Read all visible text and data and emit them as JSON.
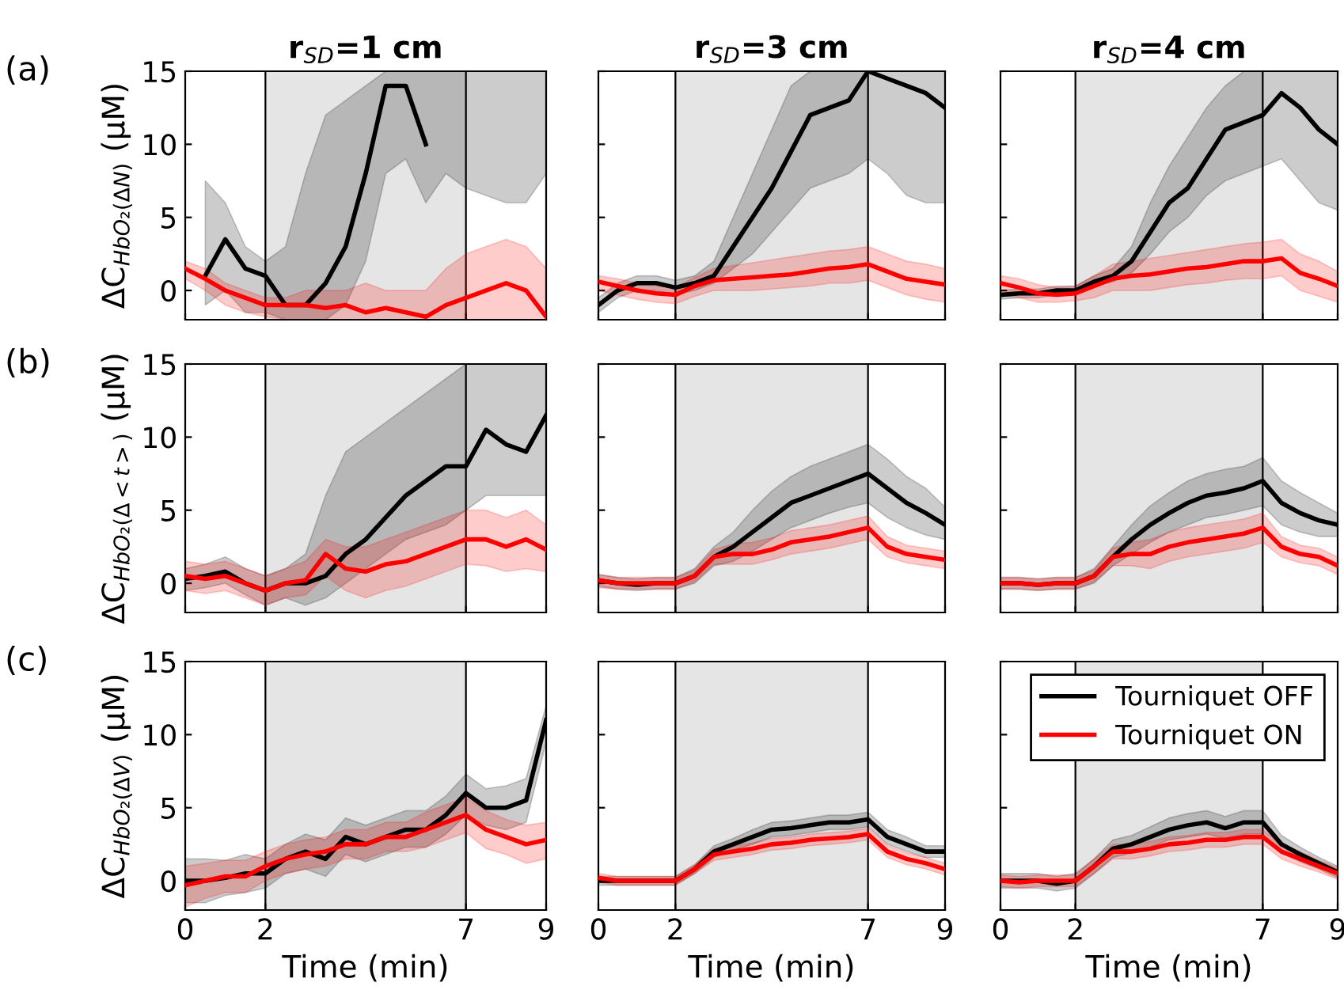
{
  "chart_data": [
    {
      "type": "line",
      "title": "r$_{SD}$=1 cm",
      "ylabel": "ΔC$_{HbO₂(ΔN)}$ (μM)",
      "annotations": [
        "(a)"
      ],
      "x": [
        0,
        0.5,
        1,
        1.5,
        2,
        2.5,
        3,
        3.5,
        4,
        4.5,
        5,
        5.5,
        6,
        6.5,
        7,
        7.5,
        8,
        8.5,
        9
      ],
      "xlim": [
        0,
        9
      ],
      "ylim": [
        -2,
        15
      ],
      "xticks": [
        0,
        2,
        7,
        9
      ],
      "yticks": [
        0,
        5,
        10,
        15
      ],
      "tick_labels": "y",
      "grid": false,
      "legend": false,
      "bands": [
        {
          "axis": "x",
          "from": 2,
          "to": 7,
          "color": "#e5e5e5"
        }
      ],
      "ref_lines": [
        {
          "axis": "x",
          "value": 2,
          "color": "#000000"
        },
        {
          "axis": "x",
          "value": 7,
          "color": "#000000"
        }
      ],
      "series": [
        {
          "color": "#000000",
          "values": [
            null,
            1,
            3.5,
            1.5,
            1,
            -1,
            -1,
            0.5,
            3,
            8,
            14,
            14,
            10,
            null,
            null,
            null,
            null,
            null,
            null
          ],
          "lower": [
            null,
            -1,
            0,
            -1.5,
            -1.5,
            -2,
            -2,
            -2,
            -1,
            2,
            8,
            9,
            6,
            8,
            7,
            6.5,
            6,
            6,
            8
          ],
          "upper": [
            null,
            7.5,
            6,
            3,
            2,
            3,
            8,
            12,
            13,
            14,
            15,
            15,
            15,
            15,
            15,
            15,
            15,
            15,
            15
          ]
        },
        {
          "color": "#ff0000",
          "values": [
            1.5,
            0.8,
            0,
            -0.5,
            -1,
            -1,
            -1,
            -1.2,
            -1,
            -1.5,
            -1.2,
            -1.5,
            -1.8,
            -1,
            -0.5,
            0,
            0.5,
            0,
            -1.8
          ],
          "lower": [
            0.8,
            0,
            -1,
            -1.5,
            -1.8,
            -2,
            -2,
            -2,
            -2,
            -2,
            -2,
            -2,
            -2,
            -2,
            -2,
            -2,
            -2,
            -2,
            -2
          ],
          "upper": [
            2,
            1.5,
            0.5,
            0,
            -0.5,
            -0.5,
            0,
            0,
            0,
            0.5,
            0,
            0,
            0,
            1.5,
            2.5,
            3,
            3.5,
            3,
            1.5
          ]
        }
      ]
    },
    {
      "type": "line",
      "title": "r$_{SD}$=3 cm",
      "x": [
        0,
        0.5,
        1,
        1.5,
        2,
        2.5,
        3,
        3.5,
        4,
        4.5,
        5,
        5.5,
        6,
        6.5,
        7,
        7.5,
        8,
        8.5,
        9
      ],
      "xlim": [
        0,
        9
      ],
      "ylim": [
        -2,
        15
      ],
      "xticks": [
        0,
        2,
        7,
        9
      ],
      "yticks": [
        0,
        5,
        10,
        15
      ],
      "tick_labels": false,
      "grid": false,
      "legend": false,
      "bands": [
        {
          "axis": "x",
          "from": 2,
          "to": 7,
          "color": "#e5e5e5"
        }
      ],
      "ref_lines": [
        {
          "axis": "x",
          "value": 2,
          "color": "#000000"
        },
        {
          "axis": "x",
          "value": 7,
          "color": "#000000"
        }
      ],
      "series": [
        {
          "color": "#000000",
          "values": [
            -1,
            0,
            0.5,
            0.5,
            0.2,
            0.5,
            1,
            3,
            5,
            7,
            9.5,
            12,
            12.5,
            13,
            15,
            14.5,
            14,
            13.5,
            12.5
          ],
          "lower": [
            -1.5,
            -0.5,
            0,
            0,
            -0.3,
            0,
            0.5,
            1.5,
            2.5,
            4,
            5.5,
            7,
            7.5,
            8,
            9,
            8,
            6.5,
            6,
            6
          ],
          "upper": [
            -0.5,
            0.5,
            1,
            1,
            0.7,
            1,
            2,
            5,
            8,
            11,
            14,
            15,
            15,
            15,
            15,
            15,
            15,
            15,
            15
          ]
        },
        {
          "color": "#ff0000",
          "values": [
            0.6,
            0.3,
            0,
            -0.2,
            -0.3,
            0.3,
            0.7,
            0.8,
            0.9,
            1,
            1.1,
            1.3,
            1.5,
            1.6,
            1.8,
            1.3,
            0.8,
            0.6,
            0.4
          ],
          "lower": [
            0,
            -0.3,
            -0.6,
            -0.8,
            -0.9,
            -0.4,
            0,
            0,
            0,
            0.1,
            0.2,
            0.3,
            0.5,
            0.5,
            0.7,
            0.2,
            -0.3,
            -0.6,
            -0.8
          ],
          "upper": [
            1,
            0.8,
            0.5,
            0.3,
            0.2,
            0.9,
            1.5,
            1.7,
            1.9,
            2.1,
            2.3,
            2.5,
            2.7,
            2.8,
            3,
            2.5,
            2,
            1.8,
            1.5
          ]
        }
      ]
    },
    {
      "type": "line",
      "title": "r$_{SD}$=4 cm",
      "x": [
        0,
        0.5,
        1,
        1.5,
        2,
        2.5,
        3,
        3.5,
        4,
        4.5,
        5,
        5.5,
        6,
        6.5,
        7,
        7.5,
        8,
        8.5,
        9
      ],
      "xlim": [
        0,
        9
      ],
      "ylim": [
        -2,
        15
      ],
      "xticks": [
        0,
        2,
        7,
        9
      ],
      "yticks": [
        0,
        5,
        10,
        15
      ],
      "tick_labels": false,
      "grid": false,
      "legend": false,
      "bands": [
        {
          "axis": "x",
          "from": 2,
          "to": 7,
          "color": "#e5e5e5"
        }
      ],
      "ref_lines": [
        {
          "axis": "x",
          "value": 2,
          "color": "#000000"
        },
        {
          "axis": "x",
          "value": 7,
          "color": "#000000"
        }
      ],
      "series": [
        {
          "color": "#000000",
          "values": [
            -0.3,
            -0.2,
            -0.2,
            0,
            0,
            0.6,
            1,
            2,
            4,
            6,
            7,
            9,
            11,
            11.5,
            12,
            13.5,
            12.5,
            11,
            10
          ],
          "lower": [
            -0.6,
            -0.5,
            -0.5,
            -0.3,
            -0.3,
            0.3,
            0.6,
            1.2,
            2.5,
            4,
            5,
            6.5,
            7.5,
            8,
            8.5,
            9,
            7.5,
            6,
            5.5
          ],
          "upper": [
            0,
            0.1,
            0.1,
            0.3,
            0.3,
            1,
            1.5,
            3,
            6,
            8.5,
            10.5,
            12.5,
            14,
            15,
            15,
            15,
            15,
            15,
            15
          ]
        },
        {
          "color": "#ff0000",
          "values": [
            0.5,
            0.2,
            -0.2,
            -0.3,
            -0.2,
            0.3,
            0.8,
            1,
            1.1,
            1.3,
            1.5,
            1.6,
            1.8,
            2,
            2,
            2.2,
            1.2,
            0.8,
            0.3
          ],
          "lower": [
            -0.3,
            -0.5,
            -0.8,
            -0.8,
            -0.7,
            -0.5,
            0,
            0,
            0,
            0.2,
            0.4,
            0.5,
            0.7,
            0.8,
            0.8,
            1,
            0,
            -0.4,
            -0.8
          ],
          "upper": [
            1,
            0.8,
            0.4,
            0.2,
            0.3,
            1,
            1.8,
            2,
            2.2,
            2.4,
            2.6,
            2.8,
            3,
            3.2,
            3.3,
            3.5,
            2.5,
            2,
            1.3
          ]
        }
      ]
    },
    {
      "type": "line",
      "ylabel": "ΔC$_{HbO₂(Δ<t>)}$ (μM)",
      "annotations": [
        "(b)"
      ],
      "x": [
        0,
        0.5,
        1,
        1.5,
        2,
        2.5,
        3,
        3.5,
        4,
        4.5,
        5,
        5.5,
        6,
        6.5,
        7,
        7.5,
        8,
        8.5,
        9
      ],
      "xlim": [
        0,
        9
      ],
      "ylim": [
        -2,
        15
      ],
      "xticks": [
        0,
        2,
        7,
        9
      ],
      "yticks": [
        0,
        5,
        10,
        15
      ],
      "tick_labels": "y",
      "grid": false,
      "legend": false,
      "bands": [
        {
          "axis": "x",
          "from": 2,
          "to": 7,
          "color": "#e5e5e5"
        }
      ],
      "ref_lines": [
        {
          "axis": "x",
          "value": 2,
          "color": "#000000"
        },
        {
          "axis": "x",
          "value": 7,
          "color": "#000000"
        }
      ],
      "series": [
        {
          "color": "#000000",
          "values": [
            0.3,
            0.5,
            0.8,
            0,
            -0.5,
            0,
            0,
            0.5,
            2,
            3,
            4.5,
            6,
            7,
            8,
            8,
            10.5,
            9.5,
            9,
            11.5
          ],
          "lower": [
            -0.5,
            -0.3,
            0,
            -0.8,
            -1.5,
            -1,
            -1.5,
            -1,
            0,
            1,
            2,
            3,
            3.5,
            4,
            5,
            6,
            6,
            6,
            6
          ],
          "upper": [
            1,
            1.3,
            1.8,
            1,
            0.5,
            1,
            2,
            6,
            9,
            10,
            11,
            12,
            13,
            14,
            15,
            15,
            15,
            15,
            15
          ]
        },
        {
          "color": "#ff0000",
          "values": [
            0.5,
            0.3,
            0.5,
            0,
            -0.5,
            0,
            0.2,
            2,
            1,
            0.8,
            1.3,
            1.5,
            2,
            2.5,
            3,
            3,
            2.5,
            3,
            2.3
          ],
          "lower": [
            -0.5,
            -0.7,
            -0.5,
            -1,
            -1.5,
            -1,
            -0.8,
            0.5,
            -0.5,
            -1,
            -0.5,
            -0.2,
            0.3,
            0.8,
            1.3,
            1.2,
            0.8,
            1,
            0.8
          ],
          "upper": [
            1.5,
            1.3,
            1.5,
            1,
            0.5,
            1,
            1.5,
            3,
            2.5,
            2.5,
            3,
            3.5,
            4,
            4.5,
            5,
            5,
            4.5,
            5,
            4
          ]
        }
      ]
    },
    {
      "type": "line",
      "x": [
        0,
        0.5,
        1,
        1.5,
        2,
        2.5,
        3,
        3.5,
        4,
        4.5,
        5,
        5.5,
        6,
        6.5,
        7,
        7.5,
        8,
        8.5,
        9
      ],
      "xlim": [
        0,
        9
      ],
      "ylim": [
        -2,
        15
      ],
      "xticks": [
        0,
        2,
        7,
        9
      ],
      "yticks": [
        0,
        5,
        10,
        15
      ],
      "tick_labels": false,
      "grid": false,
      "legend": false,
      "bands": [
        {
          "axis": "x",
          "from": 2,
          "to": 7,
          "color": "#e5e5e5"
        }
      ],
      "ref_lines": [
        {
          "axis": "x",
          "value": 2,
          "color": "#000000"
        },
        {
          "axis": "x",
          "value": 7,
          "color": "#000000"
        }
      ],
      "series": [
        {
          "color": "#000000",
          "values": [
            0.2,
            0,
            -0.1,
            0,
            0,
            0.5,
            1.8,
            2.5,
            3.5,
            4.5,
            5.5,
            6,
            6.5,
            7,
            7.5,
            6.5,
            5.5,
            4.8,
            4
          ],
          "lower": [
            -0.2,
            -0.4,
            -0.5,
            -0.4,
            -0.4,
            0,
            1.2,
            1.5,
            2.2,
            3,
            3.8,
            4.3,
            4.8,
            5.2,
            5.5,
            4.5,
            3.8,
            3.3,
            3
          ],
          "upper": [
            0.6,
            0.4,
            0.3,
            0.4,
            0.4,
            1,
            2.5,
            3.5,
            5,
            6.3,
            7.3,
            8,
            8.5,
            9,
            9.5,
            8.5,
            7.3,
            6.5,
            5.2
          ]
        },
        {
          "color": "#ff0000",
          "values": [
            0.2,
            0,
            0,
            0,
            0,
            0.5,
            1.8,
            2,
            2,
            2.3,
            2.8,
            3,
            3.2,
            3.5,
            3.8,
            2.5,
            2,
            1.8,
            1.6
          ],
          "lower": [
            -0.3,
            -0.4,
            -0.4,
            -0.4,
            -0.4,
            0.1,
            1.3,
            1.3,
            1.3,
            1.6,
            2,
            2.2,
            2.4,
            2.7,
            3,
            1.8,
            1.4,
            1.2,
            1
          ],
          "upper": [
            0.6,
            0.4,
            0.4,
            0.4,
            0.4,
            0.9,
            2.3,
            2.7,
            2.8,
            3.1,
            3.6,
            3.8,
            4,
            4.3,
            4.6,
            3.2,
            2.6,
            2.4,
            2.2
          ]
        }
      ]
    },
    {
      "type": "line",
      "x": [
        0,
        0.5,
        1,
        1.5,
        2,
        2.5,
        3,
        3.5,
        4,
        4.5,
        5,
        5.5,
        6,
        6.5,
        7,
        7.5,
        8,
        8.5,
        9
      ],
      "xlim": [
        0,
        9
      ],
      "ylim": [
        -2,
        15
      ],
      "xticks": [
        0,
        2,
        7,
        9
      ],
      "yticks": [
        0,
        5,
        10,
        15
      ],
      "tick_labels": false,
      "grid": false,
      "legend": false,
      "bands": [
        {
          "axis": "x",
          "from": 2,
          "to": 7,
          "color": "#e5e5e5"
        }
      ],
      "ref_lines": [
        {
          "axis": "x",
          "value": 2,
          "color": "#000000"
        },
        {
          "axis": "x",
          "value": 7,
          "color": "#000000"
        }
      ],
      "series": [
        {
          "color": "#000000",
          "values": [
            0,
            0,
            -0.1,
            0,
            0,
            0.5,
            1.8,
            3,
            4,
            4.8,
            5.5,
            6,
            6.2,
            6.5,
            7,
            5.5,
            4.8,
            4.3,
            4
          ],
          "lower": [
            -0.4,
            -0.4,
            -0.5,
            -0.4,
            -0.4,
            0,
            1.2,
            2,
            2.8,
            3.5,
            4,
            4.5,
            4.7,
            5,
            5.3,
            4,
            3.5,
            3.2,
            3.2
          ],
          "upper": [
            0.4,
            0.4,
            0.3,
            0.4,
            0.4,
            1,
            2.5,
            4,
            5.3,
            6.2,
            7,
            7.5,
            7.8,
            8,
            8.6,
            7,
            6.2,
            5.5,
            4.8
          ]
        },
        {
          "color": "#ff0000",
          "values": [
            0,
            0,
            -0.1,
            0,
            0,
            0.5,
            1.8,
            2,
            2,
            2.5,
            2.8,
            3,
            3.2,
            3.4,
            3.8,
            2.5,
            2,
            1.8,
            1.2
          ],
          "lower": [
            -0.4,
            -0.4,
            -0.5,
            -0.4,
            -0.4,
            0.1,
            1.2,
            1.2,
            1,
            1.5,
            1.8,
            2,
            2.2,
            2.4,
            2.8,
            1.8,
            1.4,
            1.2,
            0.6
          ],
          "upper": [
            0.4,
            0.4,
            0.3,
            0.4,
            0.4,
            0.9,
            2.4,
            2.8,
            3,
            3.5,
            3.8,
            4,
            4.2,
            4.4,
            4.8,
            3.2,
            2.6,
            2.4,
            1.8
          ]
        }
      ]
    },
    {
      "type": "line",
      "ylabel": "ΔC$_{HbO₂(ΔV)}$ (μM)",
      "xlabel": "Time (min)",
      "annotations": [
        "(c)"
      ],
      "x": [
        0,
        0.5,
        1,
        1.5,
        2,
        2.5,
        3,
        3.5,
        4,
        4.5,
        5,
        5.5,
        6,
        6.5,
        7,
        7.5,
        8,
        8.5,
        9
      ],
      "xlim": [
        0,
        9
      ],
      "ylim": [
        -2,
        15
      ],
      "xticks": [
        0,
        2,
        7,
        9
      ],
      "yticks": [
        0,
        5,
        10,
        15
      ],
      "grid": false,
      "legend": false,
      "bands": [
        {
          "axis": "x",
          "from": 2,
          "to": 7,
          "color": "#e5e5e5"
        }
      ],
      "ref_lines": [
        {
          "axis": "x",
          "value": 2,
          "color": "#000000"
        },
        {
          "axis": "x",
          "value": 7,
          "color": "#000000"
        }
      ],
      "series": [
        {
          "color": "#000000",
          "values": [
            0,
            0,
            0.2,
            0.5,
            0.5,
            1.5,
            2,
            1.5,
            3,
            2.5,
            3,
            3.5,
            3.5,
            4.5,
            6,
            5,
            5,
            5.5,
            11
          ],
          "lower": [
            -1.5,
            -1.5,
            -1,
            -0.8,
            -0.5,
            0.5,
            0.8,
            0.3,
            1.8,
            1.3,
            1.8,
            2.3,
            2.3,
            3.2,
            4.5,
            3.8,
            3.5,
            4,
            9.5
          ],
          "upper": [
            1.5,
            1.5,
            1.4,
            1.8,
            1.5,
            2.5,
            3.2,
            2.8,
            4.3,
            3.8,
            4.3,
            4.8,
            4.8,
            5.8,
            7.3,
            6.3,
            6.5,
            7,
            12
          ]
        },
        {
          "color": "#ff0000",
          "values": [
            -0.3,
            0,
            0.3,
            0.3,
            1,
            1.5,
            1.8,
            2,
            2.5,
            2.5,
            3,
            3,
            3.5,
            4,
            4.5,
            3.5,
            3,
            2.5,
            2.8
          ],
          "lower": [
            -1.8,
            -1.2,
            -0.8,
            -0.8,
            0,
            0.5,
            0.8,
            1,
            1.5,
            1.5,
            2,
            2,
            2.3,
            2.8,
            3.3,
            2.2,
            1.8,
            1.2,
            1.5
          ],
          "upper": [
            1,
            1.2,
            1.4,
            1.4,
            2,
            2.5,
            2.8,
            3,
            3.5,
            3.5,
            4,
            4,
            4.7,
            5.2,
            5.7,
            4.8,
            4.2,
            3.8,
            4
          ]
        }
      ]
    },
    {
      "type": "line",
      "xlabel": "Time (min)",
      "x": [
        0,
        0.5,
        1,
        1.5,
        2,
        2.5,
        3,
        3.5,
        4,
        4.5,
        5,
        5.5,
        6,
        6.5,
        7,
        7.5,
        8,
        8.5,
        9
      ],
      "xlim": [
        0,
        9
      ],
      "ylim": [
        -2,
        15
      ],
      "xticks": [
        0,
        2,
        7,
        9
      ],
      "yticks": [
        0,
        5,
        10,
        15
      ],
      "tick_labels": "x",
      "grid": false,
      "legend": false,
      "bands": [
        {
          "axis": "x",
          "from": 2,
          "to": 7,
          "color": "#e5e5e5"
        }
      ],
      "ref_lines": [
        {
          "axis": "x",
          "value": 2,
          "color": "#000000"
        },
        {
          "axis": "x",
          "value": 7,
          "color": "#000000"
        }
      ],
      "series": [
        {
          "color": "#000000",
          "values": [
            0,
            0,
            0,
            0,
            0,
            0.8,
            2,
            2.5,
            3,
            3.5,
            3.6,
            3.8,
            4,
            4,
            4.2,
            3,
            2.5,
            2,
            2
          ],
          "lower": [
            -0.3,
            -0.3,
            -0.3,
            -0.3,
            -0.3,
            0.5,
            1.6,
            2.1,
            2.5,
            3,
            3.1,
            3.3,
            3.5,
            3.5,
            3.7,
            2.5,
            2,
            1.6,
            1.6
          ],
          "upper": [
            0.3,
            0.3,
            0.3,
            0.3,
            0.3,
            1.1,
            2.4,
            2.9,
            3.5,
            4,
            4.1,
            4.3,
            4.5,
            4.5,
            4.7,
            3.5,
            3,
            2.4,
            2.4
          ]
        },
        {
          "color": "#ff0000",
          "values": [
            0.2,
            0,
            0,
            0,
            0,
            0.8,
            1.8,
            2,
            2.2,
            2.5,
            2.6,
            2.8,
            2.9,
            3,
            3.2,
            2,
            1.5,
            1.2,
            0.8
          ],
          "lower": [
            -0.1,
            -0.3,
            -0.3,
            -0.3,
            -0.3,
            0.5,
            1.4,
            1.6,
            1.8,
            2.1,
            2.2,
            2.4,
            2.5,
            2.6,
            2.8,
            1.6,
            1.1,
            0.8,
            0.4
          ],
          "upper": [
            0.5,
            0.3,
            0.3,
            0.3,
            0.3,
            1.1,
            2.2,
            2.4,
            2.6,
            2.9,
            3,
            3.2,
            3.3,
            3.4,
            3.6,
            2.4,
            1.9,
            1.6,
            1.2
          ]
        }
      ]
    },
    {
      "type": "line",
      "xlabel": "Time (min)",
      "x": [
        0,
        0.5,
        1,
        1.5,
        2,
        2.5,
        3,
        3.5,
        4,
        4.5,
        5,
        5.5,
        6,
        6.5,
        7,
        7.5,
        8,
        8.5,
        9
      ],
      "xlim": [
        0,
        9
      ],
      "ylim": [
        -2,
        15
      ],
      "xticks": [
        0,
        2,
        7,
        9
      ],
      "yticks": [
        0,
        5,
        10,
        15
      ],
      "tick_labels": "x",
      "grid": false,
      "legend": "top right",
      "bands": [
        {
          "axis": "x",
          "from": 2,
          "to": 7,
          "color": "#e5e5e5"
        }
      ],
      "ref_lines": [
        {
          "axis": "x",
          "value": 2,
          "color": "#000000"
        },
        {
          "axis": "x",
          "value": 7,
          "color": "#000000"
        }
      ],
      "series": [
        {
          "name": "Tourniquet OFF",
          "color": "#000000",
          "values": [
            0,
            0,
            0,
            -0.2,
            0,
            1,
            2.2,
            2.5,
            3,
            3.5,
            3.8,
            4,
            3.6,
            4,
            4,
            2.5,
            1.8,
            1.2,
            0.6
          ],
          "lower": [
            -0.5,
            -0.5,
            -0.5,
            -0.7,
            -0.5,
            0.5,
            1.6,
            1.9,
            2.3,
            2.8,
            3,
            3.2,
            2.9,
            3.2,
            3.2,
            1.9,
            1.3,
            0.8,
            0.2
          ],
          "upper": [
            0.5,
            0.5,
            0.5,
            0.3,
            0.5,
            1.5,
            2.8,
            3.1,
            3.7,
            4.3,
            4.6,
            4.8,
            4.4,
            4.8,
            4.8,
            3.1,
            2.3,
            1.6,
            1
          ]
        },
        {
          "name": "Tourniquet ON",
          "color": "#ff0000",
          "values": [
            0,
            -0.1,
            0,
            0,
            0,
            1,
            2,
            2,
            2.2,
            2.5,
            2.6,
            2.8,
            2.8,
            3,
            3,
            2,
            1.5,
            1,
            0.5
          ],
          "lower": [
            -0.4,
            -0.5,
            -0.4,
            -0.4,
            -0.4,
            0.5,
            1.5,
            1.5,
            1.7,
            2,
            2.1,
            2.3,
            2.3,
            2.5,
            2.5,
            1.5,
            1,
            0.6,
            0.1
          ],
          "upper": [
            0.4,
            0.3,
            0.4,
            0.4,
            0.4,
            1.5,
            2.5,
            2.5,
            2.7,
            3,
            3.1,
            3.3,
            3.3,
            3.5,
            3.5,
            2.5,
            2,
            1.4,
            0.9
          ]
        }
      ]
    }
  ]
}
